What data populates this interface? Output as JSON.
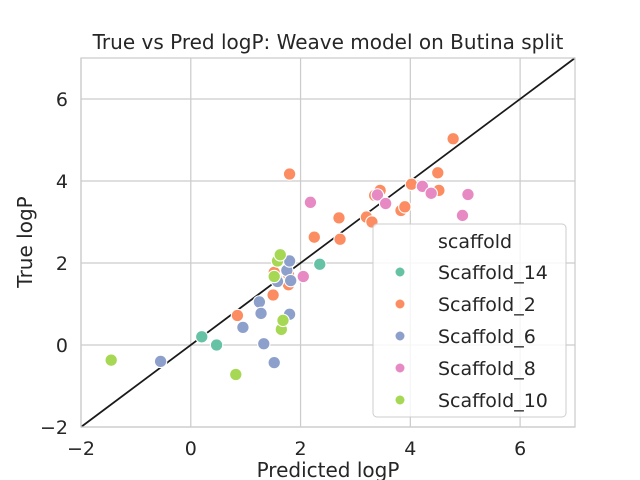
{
  "chart_data": {
    "type": "scatter",
    "title": "True vs Pred logP: Weave model on Butina split",
    "xlabel": "Predicted logP",
    "ylabel": "True logP",
    "xlim": [
      -2,
      7
    ],
    "ylim": [
      -2,
      7
    ],
    "x_ticks": [
      -2,
      0,
      2,
      4,
      6
    ],
    "y_ticks": [
      -2,
      0,
      2,
      4,
      6
    ],
    "x_tick_labels": [
      "−2",
      "0",
      "2",
      "4",
      "6"
    ],
    "y_tick_labels": [
      "−2",
      "0",
      "2",
      "4",
      "6"
    ],
    "grid": true,
    "reference_line": {
      "from": [
        -2,
        -2
      ],
      "to": [
        7,
        7
      ],
      "color": "#1a1a1a"
    },
    "legend": {
      "title": "scaffold",
      "placement": "lower-right"
    },
    "series": [
      {
        "name": "Scaffold_14",
        "color": "#66c2a5",
        "points": [
          [
            0.2,
            0.2
          ],
          [
            0.47,
            0.0
          ],
          [
            2.35,
            1.97
          ]
        ]
      },
      {
        "name": "Scaffold_2",
        "color": "#fc8d62",
        "points": [
          [
            0.85,
            0.72
          ],
          [
            1.5,
            1.22
          ],
          [
            1.52,
            1.77
          ],
          [
            1.78,
            1.47
          ],
          [
            1.78,
            1.72
          ],
          [
            1.8,
            4.17
          ],
          [
            2.25,
            2.63
          ],
          [
            2.7,
            3.1
          ],
          [
            2.72,
            2.58
          ],
          [
            3.2,
            3.12
          ],
          [
            3.3,
            3.0
          ],
          [
            3.35,
            3.65
          ],
          [
            3.45,
            3.77
          ],
          [
            3.83,
            3.28
          ],
          [
            3.9,
            3.37
          ],
          [
            4.02,
            3.92
          ],
          [
            4.5,
            4.2
          ],
          [
            4.52,
            3.77
          ],
          [
            4.78,
            5.03
          ]
        ]
      },
      {
        "name": "Scaffold_6",
        "color": "#8da0cb",
        "points": [
          [
            -0.55,
            -0.4
          ],
          [
            0.95,
            0.43
          ],
          [
            1.25,
            1.05
          ],
          [
            1.28,
            0.77
          ],
          [
            1.33,
            0.03
          ],
          [
            1.52,
            -0.43
          ],
          [
            1.58,
            1.55
          ],
          [
            1.75,
            1.82
          ],
          [
            1.8,
            0.75
          ],
          [
            1.8,
            2.05
          ],
          [
            1.82,
            1.57
          ],
          [
            2.05,
            1.67
          ]
        ]
      },
      {
        "name": "Scaffold_8",
        "color": "#e78ac3",
        "points": [
          [
            2.05,
            1.67
          ],
          [
            2.18,
            3.48
          ],
          [
            3.4,
            3.66
          ],
          [
            3.55,
            3.45
          ],
          [
            4.22,
            3.87
          ],
          [
            4.38,
            3.7
          ],
          [
            4.95,
            3.16
          ],
          [
            5.05,
            3.67
          ]
        ]
      },
      {
        "name": "Scaffold_10",
        "color": "#a6d854",
        "points": [
          [
            -1.45,
            -0.37
          ],
          [
            0.82,
            -0.72
          ],
          [
            1.52,
            1.67
          ],
          [
            1.58,
            2.05
          ],
          [
            1.63,
            2.2
          ],
          [
            1.65,
            0.38
          ],
          [
            1.68,
            0.6
          ]
        ]
      }
    ]
  }
}
